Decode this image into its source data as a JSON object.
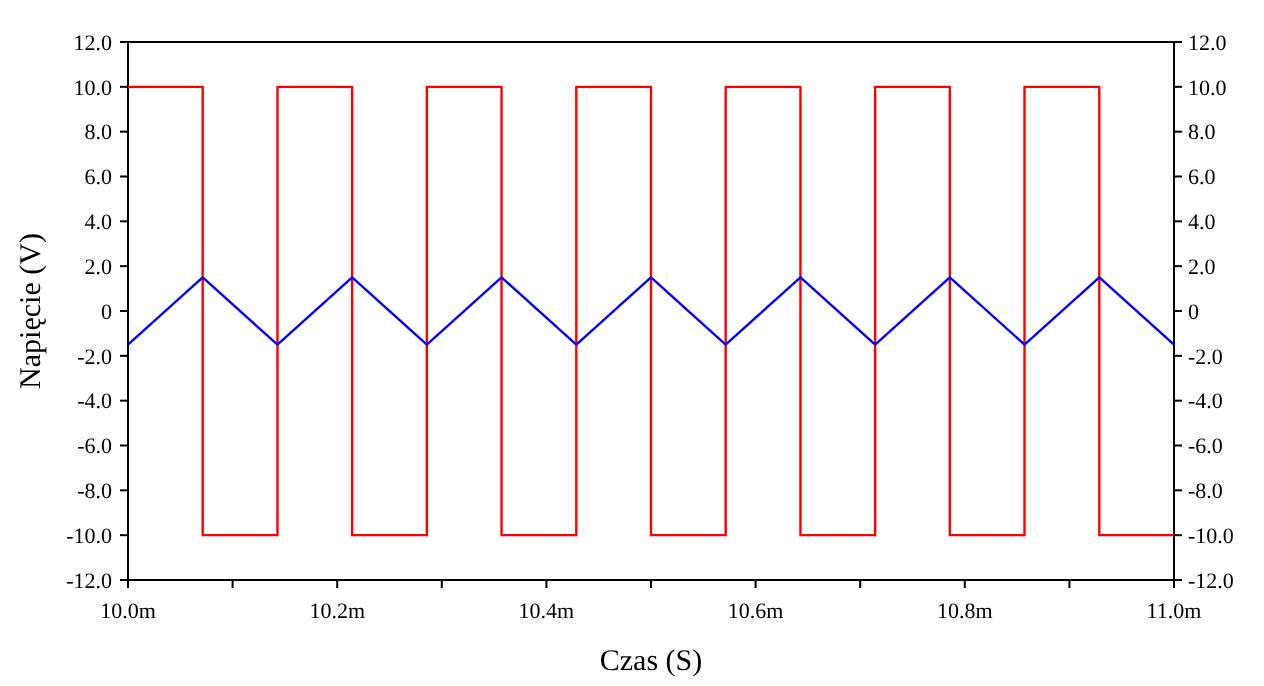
{
  "chart_data": {
    "type": "line",
    "xlabel": "Czas (S)",
    "ylabel": "Napięcie (V)",
    "xlim": [
      10.0,
      11.0
    ],
    "xticks": [
      {
        "value": 10.0,
        "label": "10.0m"
      },
      {
        "value": 10.1,
        "label": null
      },
      {
        "value": 10.2,
        "label": "10.2m"
      },
      {
        "value": 10.3,
        "label": null
      },
      {
        "value": 10.4,
        "label": "10.4m"
      },
      {
        "value": 10.5,
        "label": null
      },
      {
        "value": 10.6,
        "label": "10.6m"
      },
      {
        "value": 10.7,
        "label": null
      },
      {
        "value": 10.8,
        "label": "10.8m"
      },
      {
        "value": 10.9,
        "label": null
      },
      {
        "value": 11.0,
        "label": "11.0m"
      }
    ],
    "ylim": [
      -12,
      12
    ],
    "yticks": [
      {
        "value": -12,
        "label": "-12.0"
      },
      {
        "value": -10,
        "label": "-10.0"
      },
      {
        "value": -8,
        "label": "-8.0"
      },
      {
        "value": -6,
        "label": "-6.0"
      },
      {
        "value": -4,
        "label": "-4.0"
      },
      {
        "value": -2,
        "label": "-2.0"
      },
      0,
      {
        "value": 2,
        "label": "2.0"
      },
      {
        "value": 4,
        "label": "4.0"
      },
      {
        "value": 6,
        "label": "6.0"
      },
      {
        "value": 8,
        "label": "8.0"
      },
      {
        "value": 10,
        "label": "10.0"
      },
      {
        "value": 12,
        "label": "12.0"
      }
    ],
    "y2lim": [
      -12,
      12
    ],
    "y2ticks": [
      {
        "value": -12,
        "label": "-12.0"
      },
      {
        "value": -10,
        "label": "-10.0"
      },
      {
        "value": -8,
        "label": "-8.0"
      },
      {
        "value": -6,
        "label": "-6.0"
      },
      {
        "value": -4,
        "label": "-4.0"
      },
      {
        "value": -2,
        "label": "-2.0"
      },
      0,
      {
        "value": 2,
        "label": "2.0"
      },
      {
        "value": 4,
        "label": "4.0"
      },
      {
        "value": 6,
        "label": "6.0"
      },
      {
        "value": 8,
        "label": "8.0"
      },
      {
        "value": 10,
        "label": "10.0"
      },
      {
        "value": 12,
        "label": "12.0"
      }
    ],
    "grid": false,
    "line_style": "solid",
    "series": [
      {
        "color": "#ff0000",
        "x": [
          10,
          10.0714,
          10.0714,
          10.1429,
          10.1429,
          10.2143,
          10.2143,
          10.2857,
          10.2857,
          10.3571,
          10.3571,
          10.4286,
          10.4286,
          10.5,
          10.5,
          10.5714,
          10.5714,
          10.6429,
          10.6429,
          10.7143,
          10.7143,
          10.7857,
          10.7857,
          10.8571,
          10.8571,
          10.9286,
          10.9286,
          11
        ],
        "values": [
          10,
          10,
          -10,
          -10,
          10,
          10,
          -10,
          -10,
          10,
          10,
          -10,
          -10,
          10,
          10,
          -10,
          -10,
          10,
          10,
          -10,
          -10,
          10,
          10,
          -10,
          -10,
          10,
          10,
          -10,
          -10
        ]
      },
      {
        "color": "#0000ff",
        "x": [
          10,
          10.0714,
          10.1429,
          10.2143,
          10.2857,
          10.3571,
          10.4286,
          10.5,
          10.5714,
          10.6429,
          10.7143,
          10.7857,
          10.8571,
          10.9286,
          11
        ],
        "values": [
          -1.5,
          1.5,
          -1.5,
          1.5,
          -1.5,
          1.5,
          -1.5,
          1.5,
          -1.5,
          1.5,
          -1.5,
          1.5,
          -1.5,
          1.5,
          -1.5
        ]
      }
    ]
  }
}
